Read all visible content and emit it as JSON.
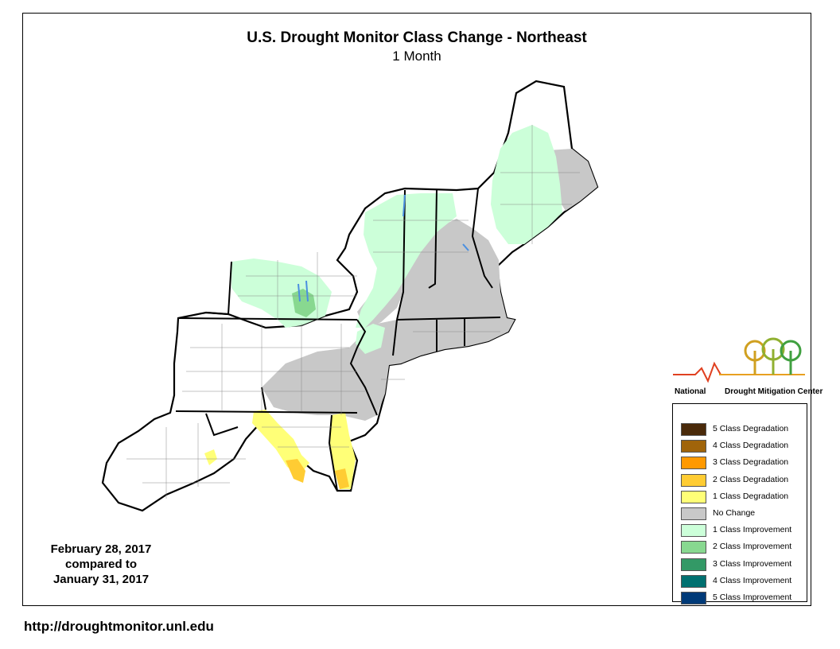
{
  "title": "U.S. Drought Monitor Class Change - Northeast",
  "subtitle": "1 Month",
  "dates": {
    "current": "February 28, 2017",
    "compared": "compared to",
    "previous": "January 31, 2017"
  },
  "logo": {
    "org_left": "National",
    "org_right": "Drought Mitigation Center"
  },
  "legend": [
    {
      "label": "5 Class Degradation",
      "color": "#4a2a0a"
    },
    {
      "label": "4 Class Degradation",
      "color": "#a0640a"
    },
    {
      "label": "3 Class Degradation",
      "color": "#ff9900"
    },
    {
      "label": "2 Class Degradation",
      "color": "#ffcc33"
    },
    {
      "label": "1 Class Degradation",
      "color": "#ffff77"
    },
    {
      "label": "No Change",
      "color": "#c8c8c8"
    },
    {
      "label": "1 Class Improvement",
      "color": "#ccffd9"
    },
    {
      "label": "2 Class Improvement",
      "color": "#88d890"
    },
    {
      "label": "3 Class Improvement",
      "color": "#339966"
    },
    {
      "label": "4 Class Improvement",
      "color": "#007070"
    },
    {
      "label": "5 Class Improvement",
      "color": "#003a78"
    }
  ],
  "url": "http://droughtmonitor.unl.edu"
}
